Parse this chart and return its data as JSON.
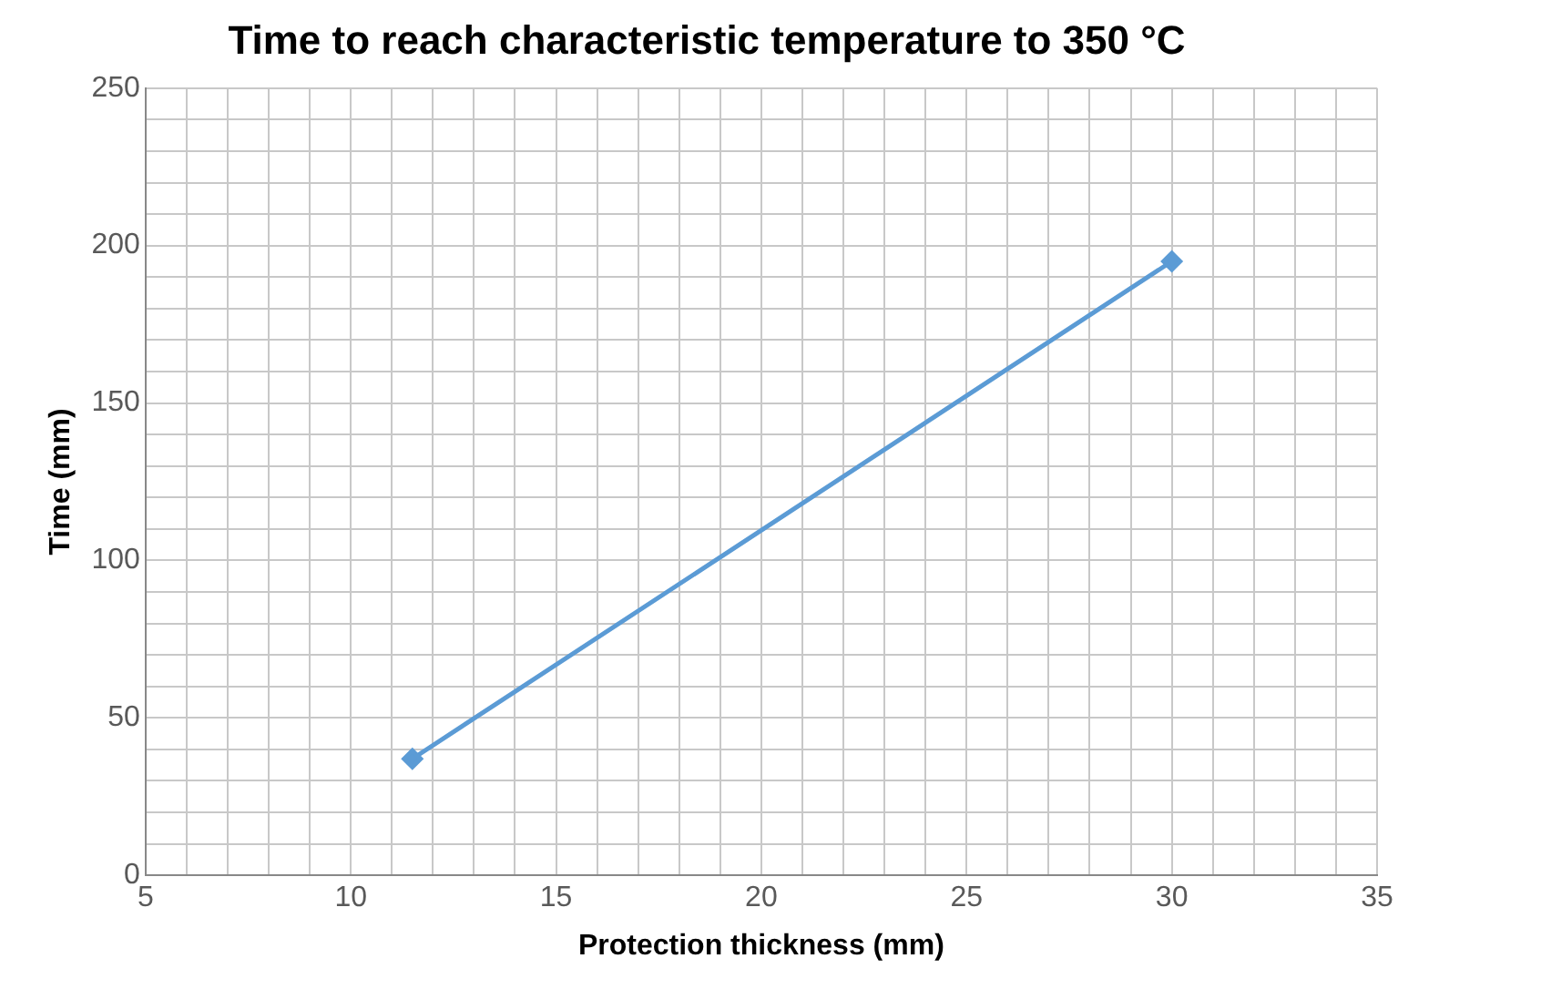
{
  "chart_data": {
    "type": "line",
    "title": "Time to reach characteristic temperature to 350 °C",
    "xlabel": "Protection thickness (mm)",
    "ylabel": "Time (mm)",
    "x": [
      11.5,
      30
    ],
    "series": [
      {
        "color": "#5b9bd5",
        "values": [
          37,
          195
        ]
      }
    ],
    "xlim": [
      5,
      35
    ],
    "xticks": [
      5,
      {
        "value": 6,
        "label": null
      },
      {
        "value": 7,
        "label": null
      },
      {
        "value": 8,
        "label": null
      },
      {
        "value": 9,
        "label": null
      },
      10,
      {
        "value": 11,
        "label": null
      },
      {
        "value": 12,
        "label": null
      },
      {
        "value": 13,
        "label": null
      },
      {
        "value": 14,
        "label": null
      },
      15,
      {
        "value": 16,
        "label": null
      },
      {
        "value": 17,
        "label": null
      },
      {
        "value": 18,
        "label": null
      },
      {
        "value": 19,
        "label": null
      },
      20,
      {
        "value": 21,
        "label": null
      },
      {
        "value": 22,
        "label": null
      },
      {
        "value": 23,
        "label": null
      },
      {
        "value": 24,
        "label": null
      },
      25,
      {
        "value": 26,
        "label": null
      },
      {
        "value": 27,
        "label": null
      },
      {
        "value": 28,
        "label": null
      },
      {
        "value": 29,
        "label": null
      },
      30,
      {
        "value": 31,
        "label": null
      },
      {
        "value": 32,
        "label": null
      },
      {
        "value": 33,
        "label": null
      },
      {
        "value": 34,
        "label": null
      },
      35
    ],
    "ylim": [
      0,
      250
    ],
    "yticks": [
      0,
      {
        "value": 10,
        "label": null
      },
      {
        "value": 20,
        "label": null
      },
      {
        "value": 30,
        "label": null
      },
      {
        "value": 40,
        "label": null
      },
      50,
      {
        "value": 60,
        "label": null
      },
      {
        "value": 70,
        "label": null
      },
      {
        "value": 80,
        "label": null
      },
      {
        "value": 90,
        "label": null
      },
      100,
      {
        "value": 110,
        "label": null
      },
      {
        "value": 120,
        "label": null
      },
      {
        "value": 130,
        "label": null
      },
      {
        "value": 140,
        "label": null
      },
      150,
      {
        "value": 160,
        "label": null
      },
      {
        "value": 170,
        "label": null
      },
      {
        "value": 180,
        "label": null
      },
      {
        "value": 190,
        "label": null
      },
      200,
      {
        "value": 210,
        "label": null
      },
      {
        "value": 220,
        "label": null
      },
      {
        "value": 230,
        "label": null
      },
      {
        "value": 240,
        "label": null
      },
      250
    ],
    "grid": true,
    "legend": false,
    "marker": "diamond",
    "line_style": "solid"
  }
}
